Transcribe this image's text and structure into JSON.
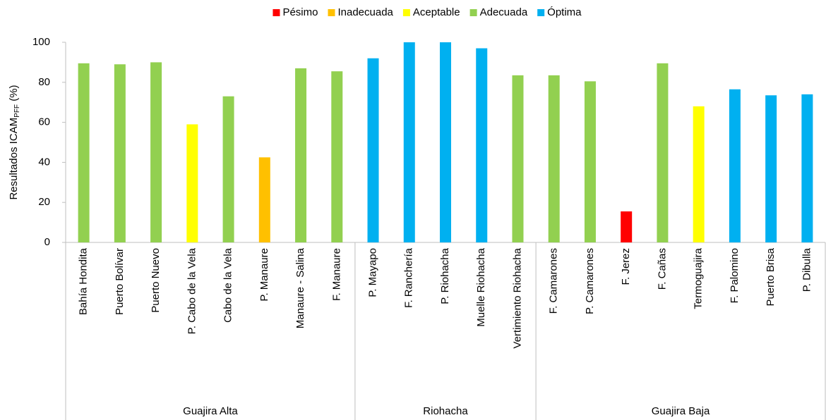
{
  "chart_data": {
    "type": "bar",
    "ylabel": {
      "text": "Resultados ICAM",
      "subscript": "PFF",
      "suffix": " (%)"
    },
    "groups": [
      {
        "name": "Guajira Alta",
        "categories": [
          "Bahía Hondita",
          "Puerto Bolívar",
          "Puerto Nuevo",
          "P. Cabo de la Vela",
          "Cabo de la Vela",
          "P. Manaure",
          "Manaure - Salina",
          "F. Manaure"
        ]
      },
      {
        "name": "Riohacha",
        "categories": [
          "P. Mayapo",
          "F. Ranchería",
          "P. Riohacha",
          "Muelle Riohacha",
          "Vertimiento Riohacha"
        ]
      },
      {
        "name": "Guajira Baja",
        "categories": [
          "F. Camarones",
          "P. Camarones",
          "F. Jerez",
          "F. Cañas",
          "Termoguajira",
          "F. Palomino",
          "Puerto Brisa",
          "P. Dibulla"
        ]
      }
    ],
    "series": [
      {
        "name": "Pésimo",
        "color": "#ff0000",
        "values": [
          null,
          null,
          null,
          null,
          null,
          null,
          null,
          null,
          null,
          null,
          null,
          null,
          null,
          null,
          null,
          15.5,
          null,
          null,
          null,
          null,
          null
        ]
      },
      {
        "name": "Inadecuada",
        "color": "#ffc000",
        "values": [
          null,
          null,
          null,
          null,
          null,
          42.5,
          null,
          null,
          null,
          null,
          null,
          null,
          null,
          null,
          null,
          null,
          null,
          null,
          null,
          null,
          null
        ]
      },
      {
        "name": "Aceptable",
        "color": "#ffff00",
        "values": [
          null,
          null,
          null,
          59,
          null,
          null,
          null,
          null,
          null,
          null,
          null,
          null,
          null,
          null,
          null,
          null,
          null,
          68,
          null,
          null,
          null
        ]
      },
      {
        "name": "Adecuada",
        "color": "#92d050",
        "values": [
          89.5,
          89,
          90,
          null,
          73,
          null,
          87,
          85.5,
          null,
          null,
          null,
          null,
          83.5,
          83.5,
          80.5,
          null,
          89.5,
          null,
          null,
          null,
          null
        ]
      },
      {
        "name": "Óptima",
        "color": "#00b0f0",
        "values": [
          null,
          null,
          null,
          null,
          null,
          null,
          null,
          null,
          92,
          100,
          100,
          97,
          null,
          null,
          null,
          null,
          null,
          null,
          76.5,
          73.5,
          74
        ]
      }
    ],
    "ylim": [
      0,
      100
    ],
    "yticks": [
      0,
      20,
      40,
      60,
      80,
      100
    ],
    "legend": "top"
  }
}
